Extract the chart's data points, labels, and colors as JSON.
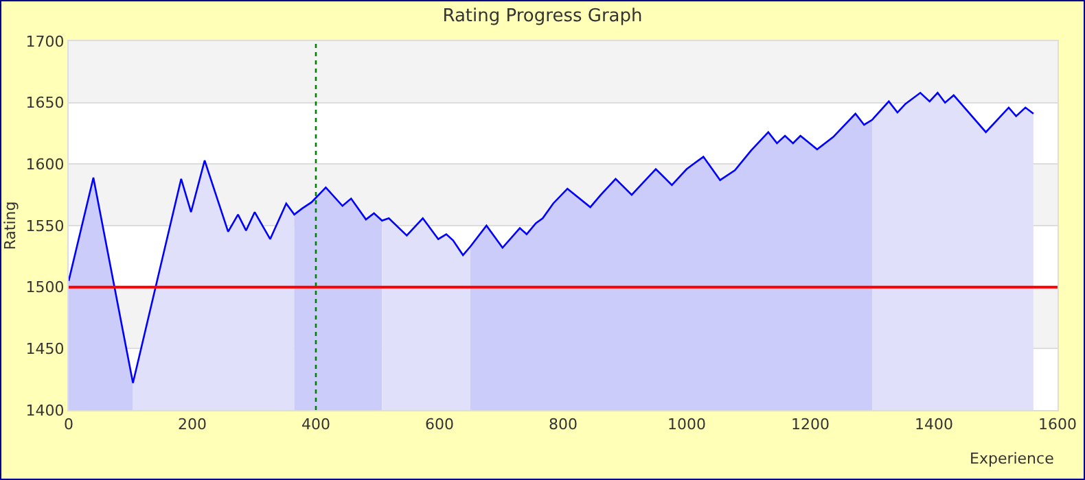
{
  "chart_data": {
    "type": "line",
    "title": "Rating Progress Graph",
    "xlabel": "Experience",
    "ylabel": "Rating",
    "xlim": [
      0,
      1600
    ],
    "xticks": [
      0,
      200,
      400,
      600,
      800,
      1000,
      1200,
      1400,
      1600
    ],
    "ylim": [
      1400,
      1700
    ],
    "yticks": [
      1400,
      1450,
      1500,
      1550,
      1600,
      1650,
      1700
    ],
    "grid": "y",
    "marker": "none",
    "line_style": "solid",
    "ref_lines": [
      {
        "axis": "y",
        "value": 1500,
        "color": "#ff0000",
        "line_style": "solid"
      },
      {
        "axis": "x",
        "value": 400,
        "color": "#008000",
        "line_style": "dotted"
      }
    ],
    "series": [
      {
        "type": "area",
        "color": "#ccccfa",
        "x": [
          0,
          40,
          104
        ],
        "values": [
          1505,
          1589,
          1422
        ]
      },
      {
        "type": "area",
        "color": "#e0e0fa",
        "x": [
          104,
          182,
          198,
          220,
          258,
          274,
          287,
          301,
          326,
          352,
          365
        ],
        "values": [
          1422,
          1588,
          1561,
          1603,
          1545,
          1559,
          1546,
          1561,
          1539,
          1568,
          1559
        ]
      },
      {
        "type": "area",
        "color": "#ccccfa",
        "x": [
          365,
          378,
          393,
          416,
          443,
          457,
          481,
          494,
          507
        ],
        "values": [
          1559,
          1564,
          1569,
          1581,
          1566,
          1572,
          1555,
          1560,
          1554
        ]
      },
      {
        "type": "area",
        "color": "#e0e0fa",
        "x": [
          507,
          518,
          547,
          573,
          598,
          611,
          622,
          638,
          650
        ],
        "values": [
          1554,
          1556,
          1542,
          1556,
          1539,
          1543,
          1538,
          1526,
          1533
        ]
      },
      {
        "type": "area",
        "color": "#ccccfa",
        "x": [
          650,
          676,
          702,
          730,
          741,
          756,
          767,
          784,
          807,
          844,
          861,
          885,
          911,
          950,
          976,
          1000,
          1027,
          1054,
          1078,
          1104,
          1132,
          1146,
          1159,
          1172,
          1184,
          1211,
          1237,
          1273,
          1287,
          1300
        ],
        "values": [
          1533,
          1550,
          1532,
          1548,
          1543,
          1552,
          1556,
          1568,
          1580,
          1565,
          1575,
          1588,
          1575,
          1596,
          1583,
          1596,
          1606,
          1587,
          1595,
          1611,
          1626,
          1617,
          1623,
          1617,
          1623,
          1612,
          1622,
          1641,
          1632,
          1636
        ]
      },
      {
        "type": "area",
        "color": "#e0e0fa",
        "x": [
          1300,
          1327,
          1341,
          1354,
          1378,
          1393,
          1406,
          1418,
          1432,
          1484,
          1521,
          1533,
          1548,
          1561
        ],
        "values": [
          1636,
          1651,
          1642,
          1649,
          1658,
          1651,
          1658,
          1650,
          1656,
          1626,
          1646,
          1639,
          1646,
          1641
        ]
      },
      {
        "color": "#0000ff",
        "x": [
          0,
          40,
          104,
          182,
          198,
          220,
          258,
          274,
          287,
          301,
          326,
          352,
          365,
          378,
          393,
          416,
          443,
          457,
          481,
          494,
          507,
          518,
          547,
          573,
          598,
          611,
          622,
          638,
          650,
          676,
          702,
          730,
          741,
          756,
          767,
          784,
          807,
          844,
          861,
          885,
          911,
          950,
          976,
          1000,
          1027,
          1054,
          1078,
          1104,
          1132,
          1146,
          1159,
          1172,
          1184,
          1211,
          1237,
          1273,
          1287,
          1300,
          1327,
          1341,
          1354,
          1378,
          1393,
          1406,
          1418,
          1432,
          1484,
          1521,
          1533,
          1548,
          1561
        ],
        "values": [
          1505,
          1589,
          1422,
          1588,
          1561,
          1603,
          1545,
          1559,
          1546,
          1561,
          1539,
          1568,
          1559,
          1564,
          1569,
          1581,
          1566,
          1572,
          1555,
          1560,
          1554,
          1556,
          1542,
          1556,
          1539,
          1543,
          1538,
          1526,
          1533,
          1550,
          1532,
          1548,
          1543,
          1552,
          1556,
          1568,
          1580,
          1565,
          1575,
          1588,
          1575,
          1596,
          1583,
          1596,
          1606,
          1587,
          1595,
          1611,
          1626,
          1617,
          1623,
          1617,
          1623,
          1612,
          1622,
          1641,
          1632,
          1636,
          1651,
          1642,
          1649,
          1658,
          1651,
          1658,
          1650,
          1656,
          1626,
          1646,
          1639,
          1646,
          1641
        ]
      }
    ]
  }
}
